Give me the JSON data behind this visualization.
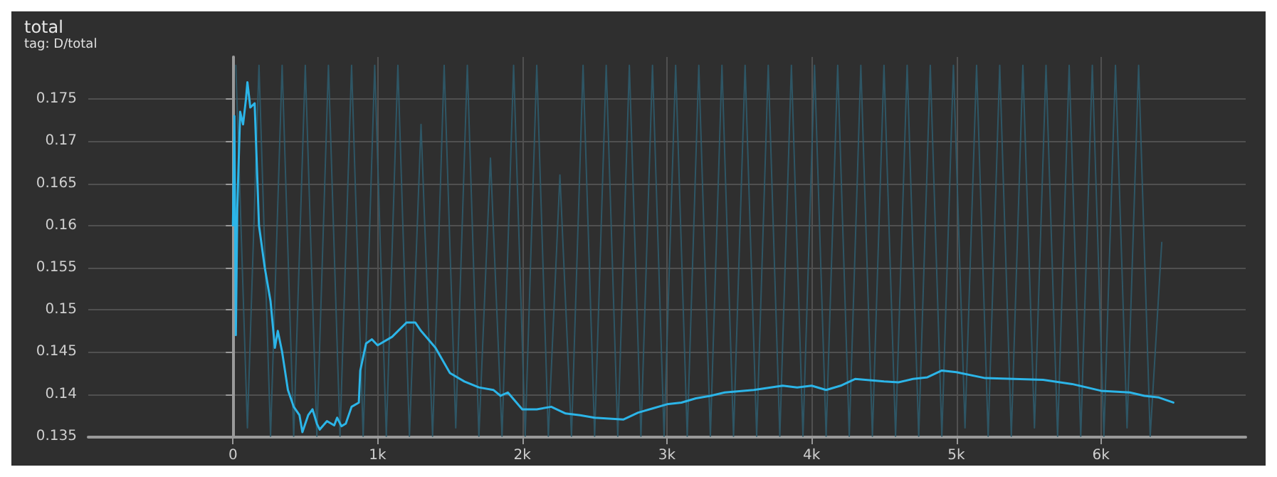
{
  "chart_data": {
    "type": "line",
    "title": "total",
    "subtitle": "tag: D/total",
    "xlim": [
      -1000,
      7000
    ],
    "xticks": [
      {
        "value": 0,
        "label": "0"
      },
      {
        "value": 1000,
        "label": "1k"
      },
      {
        "value": 2000,
        "label": "2k"
      },
      {
        "value": 3000,
        "label": "3k"
      },
      {
        "value": 4000,
        "label": "4k"
      },
      {
        "value": 5000,
        "label": "5k"
      },
      {
        "value": 6000,
        "label": "6k"
      }
    ],
    "ylim": [
      0.1349,
      0.18
    ],
    "yticks": [
      0.135,
      0.14,
      0.145,
      0.15,
      0.155,
      0.16,
      0.165,
      0.17,
      0.175
    ],
    "grid": true,
    "series": [
      {
        "color": "#2f5b6c",
        "x": [
          20,
          100,
          180,
          260,
          340,
          420,
          500,
          580,
          660,
          740,
          820,
          900,
          980,
          1060,
          1140,
          1220,
          1300,
          1380,
          1460,
          1540,
          1620,
          1700,
          1780,
          1860,
          1940,
          2020,
          2100,
          2180,
          2260,
          2340,
          2420,
          2500,
          2580,
          2660,
          2740,
          2820,
          2900,
          2980,
          3060,
          3140,
          3220,
          3300,
          3380,
          3460,
          3540,
          3620,
          3700,
          3780,
          3860,
          3940,
          4020,
          4100,
          4180,
          4260,
          4340,
          4420,
          4500,
          4580,
          4660,
          4740,
          4820,
          4900,
          4980,
          5060,
          5140,
          5220,
          5300,
          5380,
          5460,
          5540,
          5620,
          5700,
          5780,
          5860,
          5940,
          6020,
          6100,
          6180,
          6260,
          6340,
          6420
        ],
        "values": [
          0.179,
          0.136,
          0.179,
          0.135,
          0.179,
          0.135,
          0.179,
          0.135,
          0.179,
          0.135,
          0.179,
          0.135,
          0.179,
          0.135,
          0.179,
          0.135,
          0.172,
          0.135,
          0.179,
          0.136,
          0.179,
          0.135,
          0.168,
          0.135,
          0.179,
          0.135,
          0.179,
          0.135,
          0.166,
          0.135,
          0.179,
          0.135,
          0.179,
          0.135,
          0.179,
          0.135,
          0.179,
          0.135,
          0.179,
          0.135,
          0.179,
          0.135,
          0.179,
          0.135,
          0.179,
          0.135,
          0.179,
          0.135,
          0.179,
          0.135,
          0.179,
          0.135,
          0.179,
          0.135,
          0.179,
          0.135,
          0.179,
          0.135,
          0.179,
          0.135,
          0.179,
          0.135,
          0.179,
          0.136,
          0.179,
          0.135,
          0.179,
          0.135,
          0.179,
          0.136,
          0.179,
          0.135,
          0.179,
          0.135,
          0.179,
          0.135,
          0.179,
          0.136,
          0.179,
          0.135,
          0.158
        ]
      },
      {
        "color": "#2cb5e8",
        "x": [
          0,
          10,
          20,
          30,
          50,
          70,
          90,
          100,
          120,
          150,
          180,
          220,
          260,
          290,
          310,
          340,
          380,
          420,
          460,
          480,
          520,
          550,
          580,
          600,
          650,
          700,
          720,
          750,
          780,
          820,
          870,
          880,
          920,
          960,
          1000,
          1100,
          1200,
          1260,
          1300,
          1400,
          1500,
          1600,
          1700,
          1800,
          1850,
          1900,
          2000,
          2100,
          2200,
          2300,
          2400,
          2500,
          2600,
          2700,
          2800,
          2900,
          3000,
          3100,
          3200,
          3300,
          3400,
          3600,
          3800,
          3900,
          4000,
          4100,
          4200,
          4300,
          4500,
          4600,
          4700,
          4800,
          4900,
          5000,
          5200,
          5400,
          5600,
          5800,
          6000,
          6200,
          6300,
          6400,
          6500
        ],
        "values": [
          0.16,
          0.173,
          0.147,
          0.162,
          0.1735,
          0.172,
          0.175,
          0.177,
          0.174,
          0.1745,
          0.16,
          0.155,
          0.151,
          0.1455,
          0.1475,
          0.145,
          0.1405,
          0.1385,
          0.1375,
          0.1355,
          0.1375,
          0.1382,
          0.1365,
          0.1358,
          0.1368,
          0.1363,
          0.1372,
          0.1362,
          0.1365,
          0.1385,
          0.139,
          0.1428,
          0.146,
          0.1465,
          0.1458,
          0.1468,
          0.1485,
          0.1485,
          0.1475,
          0.1455,
          0.1425,
          0.1415,
          0.1408,
          0.1405,
          0.1398,
          0.1402,
          0.1382,
          0.1382,
          0.1385,
          0.1377,
          0.1375,
          0.1372,
          0.1371,
          0.137,
          0.1378,
          0.1383,
          0.1388,
          0.139,
          0.1395,
          0.1398,
          0.1402,
          0.1405,
          0.141,
          0.1408,
          0.141,
          0.1405,
          0.141,
          0.1418,
          0.1415,
          0.1414,
          0.1418,
          0.142,
          0.1428,
          0.1426,
          0.1419,
          0.1418,
          0.1417,
          0.1412,
          0.1404,
          0.1402,
          0.1398,
          0.1396,
          0.139
        ]
      }
    ]
  }
}
